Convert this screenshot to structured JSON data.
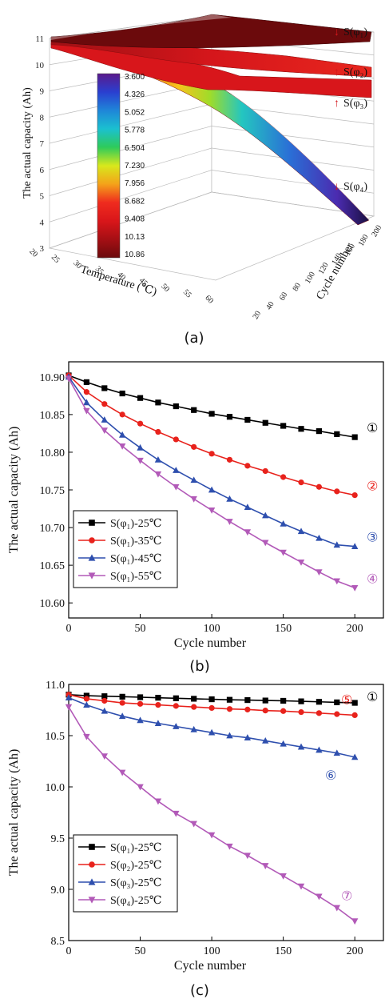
{
  "chart_data": [
    {
      "type": "surface",
      "caption": "(a)",
      "zlabel": "The actual capacity (Ah)",
      "xlabel": "Temperature (℃)",
      "ylabel": "Cycle number",
      "z_ticks": [
        "3",
        "4",
        "5",
        "6",
        "7",
        "8",
        "9",
        "10",
        "11"
      ],
      "temp_ticks": [
        "20",
        "25",
        "30",
        "35",
        "40",
        "45",
        "50",
        "55",
        "60"
      ],
      "cycle_ticks": [
        "20",
        "40",
        "60",
        "80",
        "100",
        "120",
        "140",
        "160",
        "180",
        "200"
      ],
      "colorbar": [
        "3.600",
        "4.326",
        "5.052",
        "5.778",
        "6.504",
        "7.230",
        "7.956",
        "8.682",
        "9.408",
        "10.13",
        "10.86"
      ],
      "surface_labels": [
        {
          "arrow": "↓",
          "text": "S(φ₁)"
        },
        {
          "arrow": "↑",
          "text": "S(φ₂)"
        },
        {
          "arrow": "↑",
          "text": "S(φ₃)"
        },
        {
          "arrow": "↓",
          "text": "S(φ₄)"
        }
      ]
    },
    {
      "type": "line",
      "caption": "(b)",
      "xlabel": "Cycle number",
      "ylabel": "The actual capacity (Ah)",
      "xlim": [
        0,
        220
      ],
      "ylim": [
        10.58,
        10.92
      ],
      "xticks": [
        "0",
        "50",
        "100",
        "150",
        "200"
      ],
      "yticks": [
        "10.60",
        "10.65",
        "10.70",
        "10.75",
        "10.80",
        "10.85",
        "10.90"
      ],
      "x": [
        0,
        12.5,
        25,
        37.5,
        50,
        62.5,
        75,
        87.5,
        100,
        112.5,
        125,
        137.5,
        150,
        162.5,
        175,
        187.5,
        200
      ],
      "series": [
        {
          "name": "S(φ₁)-25℃",
          "marker": "square",
          "color": "#000000",
          "end_label": "①",
          "values": [
            10.902,
            10.893,
            10.885,
            10.878,
            10.872,
            10.866,
            10.861,
            10.856,
            10.851,
            10.847,
            10.843,
            10.839,
            10.835,
            10.831,
            10.828,
            10.824,
            10.82
          ]
        },
        {
          "name": "S(φ₁)-35℃",
          "marker": "circle",
          "color": "#e8221c",
          "end_label": "②",
          "values": [
            10.902,
            10.88,
            10.864,
            10.85,
            10.838,
            10.827,
            10.817,
            10.807,
            10.798,
            10.79,
            10.782,
            10.775,
            10.767,
            10.76,
            10.754,
            10.748,
            10.743
          ]
        },
        {
          "name": "S(φ₁)-45℃",
          "marker": "triangle-up",
          "color": "#2e4fae",
          "end_label": "③",
          "values": [
            10.9,
            10.866,
            10.843,
            10.823,
            10.806,
            10.79,
            10.776,
            10.763,
            10.75,
            10.738,
            10.727,
            10.716,
            10.705,
            10.695,
            10.686,
            10.677,
            10.675
          ]
        },
        {
          "name": "S(φ₁)-55℃",
          "marker": "triangle-down",
          "color": "#b25ab8",
          "end_label": "④",
          "values": [
            10.898,
            10.855,
            10.829,
            10.808,
            10.789,
            10.771,
            10.754,
            10.738,
            10.723,
            10.708,
            10.694,
            10.68,
            10.667,
            10.654,
            10.641,
            10.629,
            10.62
          ]
        }
      ]
    },
    {
      "type": "line",
      "caption": "(c)",
      "xlabel": "Cycle number",
      "ylabel": "The actual capacity (Ah)",
      "xlim": [
        0,
        220
      ],
      "ylim": [
        8.5,
        11.0
      ],
      "xticks": [
        "0",
        "50",
        "100",
        "150",
        "200"
      ],
      "yticks": [
        "8.5",
        "9.0",
        "9.5",
        "10.0",
        "10.5",
        "11.0"
      ],
      "x": [
        0,
        12.5,
        25,
        37.5,
        50,
        62.5,
        75,
        87.5,
        100,
        112.5,
        125,
        137.5,
        150,
        162.5,
        175,
        187.5,
        200
      ],
      "series": [
        {
          "name": "S(φ₁)-25℃",
          "marker": "square",
          "color": "#000000",
          "end_label": "①",
          "values": [
            10.9,
            10.89,
            10.885,
            10.88,
            10.875,
            10.87,
            10.865,
            10.86,
            10.855,
            10.85,
            10.847,
            10.843,
            10.84,
            10.835,
            10.83,
            10.825,
            10.82
          ]
        },
        {
          "name": "S(φ₂)-25℃",
          "marker": "circle",
          "color": "#e8221c",
          "end_label": "⑤",
          "values": [
            10.9,
            10.86,
            10.84,
            10.82,
            10.81,
            10.8,
            10.79,
            10.78,
            10.77,
            10.76,
            10.755,
            10.745,
            10.74,
            10.73,
            10.72,
            10.71,
            10.7
          ]
        },
        {
          "name": "S(φ₃)-25℃",
          "marker": "triangle-up",
          "color": "#2e4fae",
          "end_label": "⑥",
          "values": [
            10.87,
            10.8,
            10.74,
            10.69,
            10.65,
            10.62,
            10.59,
            10.56,
            10.53,
            10.5,
            10.48,
            10.45,
            10.42,
            10.39,
            10.36,
            10.33,
            10.29
          ]
        },
        {
          "name": "S(φ₄)-25℃",
          "marker": "triangle-down",
          "color": "#b25ab8",
          "end_label": "⑦",
          "values": [
            10.78,
            10.49,
            10.3,
            10.14,
            10.0,
            9.86,
            9.74,
            9.64,
            9.53,
            9.42,
            9.33,
            9.23,
            9.13,
            9.03,
            8.93,
            8.82,
            8.69
          ]
        }
      ]
    }
  ]
}
